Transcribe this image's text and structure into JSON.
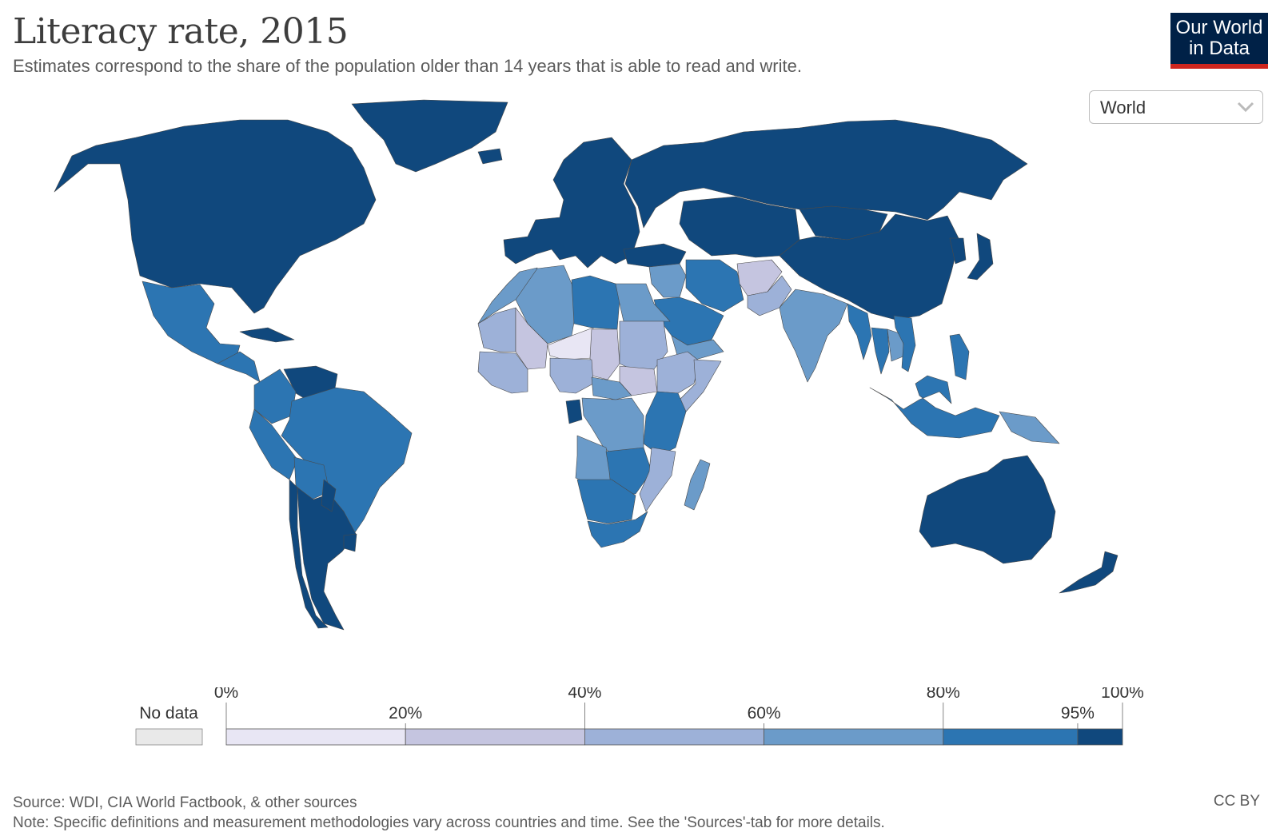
{
  "header": {
    "title": "Literacy rate, 2015",
    "subtitle": "Estimates correspond to the share of the population older than 14 years that is able to read and write."
  },
  "logo": {
    "line1": "Our World",
    "line2": "in Data"
  },
  "entity_selector": {
    "value": "World"
  },
  "chart_data": {
    "type": "choropleth",
    "title": "Literacy rate, 2015",
    "region": "World",
    "legend": {
      "no_data_label": "No data",
      "no_data_color": "#e9e9e9",
      "bins": [
        {
          "from": 0,
          "to": 20,
          "color": "#e8e6f4"
        },
        {
          "from": 20,
          "to": 40,
          "color": "#c5c5e0"
        },
        {
          "from": 40,
          "to": 60,
          "color": "#9db1d8"
        },
        {
          "from": 60,
          "to": 80,
          "color": "#6b9bc9"
        },
        {
          "from": 80,
          "to": 95,
          "color": "#2c75b2"
        },
        {
          "from": 95,
          "to": 100,
          "color": "#10487d"
        }
      ],
      "tick_labels": [
        "0%",
        "20%",
        "40%",
        "60%",
        "80%",
        "95%",
        "100%"
      ]
    },
    "regions": [
      {
        "name": "North America",
        "bin": 5
      },
      {
        "name": "Greenland",
        "bin": 5
      },
      {
        "name": "Mexico",
        "bin": 4
      },
      {
        "name": "Central America",
        "bin": 4
      },
      {
        "name": "Cuba",
        "bin": 5
      },
      {
        "name": "Venezuela",
        "bin": 5
      },
      {
        "name": "Colombia",
        "bin": 4
      },
      {
        "name": "Brazil",
        "bin": 4
      },
      {
        "name": "Peru",
        "bin": 4
      },
      {
        "name": "Bolivia",
        "bin": 4
      },
      {
        "name": "Chile",
        "bin": 5
      },
      {
        "name": "Argentina",
        "bin": 5
      },
      {
        "name": "Paraguay",
        "bin": 5
      },
      {
        "name": "Uruguay",
        "bin": 5
      },
      {
        "name": "Europe",
        "bin": 5
      },
      {
        "name": "Iceland",
        "bin": 5
      },
      {
        "name": "Russia",
        "bin": 5
      },
      {
        "name": "Turkey",
        "bin": 5
      },
      {
        "name": "Central Asia",
        "bin": 5
      },
      {
        "name": "China",
        "bin": 5
      },
      {
        "name": "Mongolia",
        "bin": 5
      },
      {
        "name": "Japan",
        "bin": 5
      },
      {
        "name": "Korea",
        "bin": 5
      },
      {
        "name": "Iran",
        "bin": 4
      },
      {
        "name": "Saudi Arabia",
        "bin": 4
      },
      {
        "name": "Yemen",
        "bin": 3
      },
      {
        "name": "Iraq & Syria",
        "bin": 3
      },
      {
        "name": "Afghanistan",
        "bin": 1
      },
      {
        "name": "Pakistan",
        "bin": 2
      },
      {
        "name": "India",
        "bin": 3
      },
      {
        "name": "Myanmar",
        "bin": 4
      },
      {
        "name": "Thailand",
        "bin": 4
      },
      {
        "name": "Vietnam",
        "bin": 4
      },
      {
        "name": "Laos & Cambodia",
        "bin": 3
      },
      {
        "name": "Philippines",
        "bin": 4
      },
      {
        "name": "Indonesia",
        "bin": 4
      },
      {
        "name": "Papua New Guinea",
        "bin": 3
      },
      {
        "name": "Australia",
        "bin": 5
      },
      {
        "name": "New Zealand",
        "bin": 5
      },
      {
        "name": "Morocco & Western Sahara",
        "bin": 3
      },
      {
        "name": "Algeria",
        "bin": 3
      },
      {
        "name": "Libya",
        "bin": 4
      },
      {
        "name": "Egypt",
        "bin": 3
      },
      {
        "name": "Mauritania",
        "bin": 2
      },
      {
        "name": "Mali",
        "bin": 1
      },
      {
        "name": "Niger",
        "bin": 0
      },
      {
        "name": "Chad",
        "bin": 1
      },
      {
        "name": "Sudan",
        "bin": 2
      },
      {
        "name": "South Sudan",
        "bin": 1
      },
      {
        "name": "Ethiopia",
        "bin": 2
      },
      {
        "name": "Somalia",
        "bin": 2
      },
      {
        "name": "West Africa",
        "bin": 2
      },
      {
        "name": "Nigeria",
        "bin": 2
      },
      {
        "name": "Central Africa",
        "bin": 3
      },
      {
        "name": "Gabon & Equatorial Guinea",
        "bin": 5
      },
      {
        "name": "DR Congo",
        "bin": 3
      },
      {
        "name": "Kenya & Tanzania",
        "bin": 4
      },
      {
        "name": "Angola",
        "bin": 3
      },
      {
        "name": "Zambia & Zimbabwe",
        "bin": 4
      },
      {
        "name": "Mozambique",
        "bin": 2
      },
      {
        "name": "Namibia & Botswana",
        "bin": 4
      },
      {
        "name": "South Africa",
        "bin": 4
      },
      {
        "name": "Madagascar",
        "bin": 3
      }
    ]
  },
  "footer": {
    "source": "Source: WDI, CIA World Factbook, & other sources",
    "note": "Note: Specific definitions and measurement methodologies vary across countries and time. See the 'Sources'-tab for more details.",
    "license": "CC BY"
  }
}
